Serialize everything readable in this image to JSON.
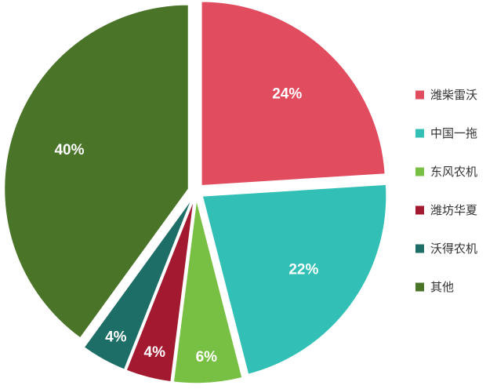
{
  "chart_data": {
    "type": "pie",
    "title": "",
    "legend_position": "right",
    "slices": [
      {
        "name": "潍柴雷沃",
        "value": 24,
        "label": "24%",
        "color": "#e14c5e"
      },
      {
        "name": "中国一拖",
        "value": 22,
        "label": "22%",
        "color": "#32c0b6"
      },
      {
        "name": "东风农机",
        "value": 6,
        "label": "6%",
        "color": "#78c043"
      },
      {
        "name": "潍坊华夏",
        "value": 4,
        "label": "4%",
        "color": "#a31a30"
      },
      {
        "name": "沃得农机",
        "value": 4,
        "label": "4%",
        "color": "#1c6e66"
      },
      {
        "name": "其他",
        "value": 40,
        "label": "40%",
        "color": "#4a7529"
      }
    ]
  }
}
